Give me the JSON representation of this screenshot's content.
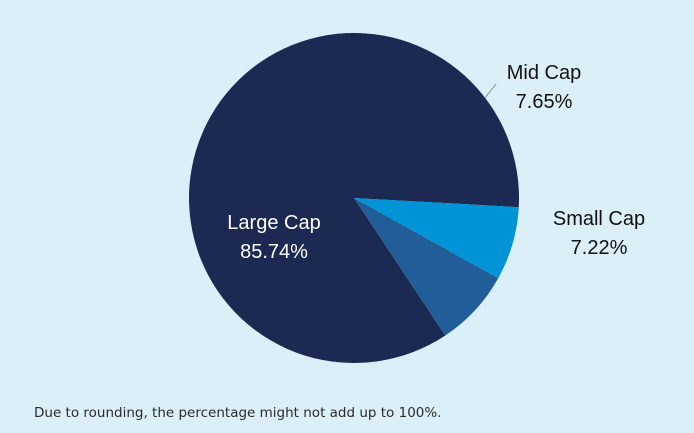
{
  "chart_data": {
    "type": "pie",
    "title": "",
    "slices": [
      {
        "label": "Large Cap",
        "value": 85.74,
        "value_label": "85.74%",
        "color": "#1c2953",
        "label_color": "#ffffff"
      },
      {
        "label": "Mid Cap",
        "value": 7.65,
        "value_label": "7.65%",
        "color": "#215e99",
        "label_color": "#111111"
      },
      {
        "label": "Small Cap",
        "value": 7.22,
        "value_label": "7.22%",
        "color": "#0093d6",
        "label_color": "#111111"
      }
    ],
    "legend": "none",
    "labels_placement": "on-slice / outside with leader line"
  },
  "footnote": "Due to rounding, the percentage might not add up to 100%."
}
